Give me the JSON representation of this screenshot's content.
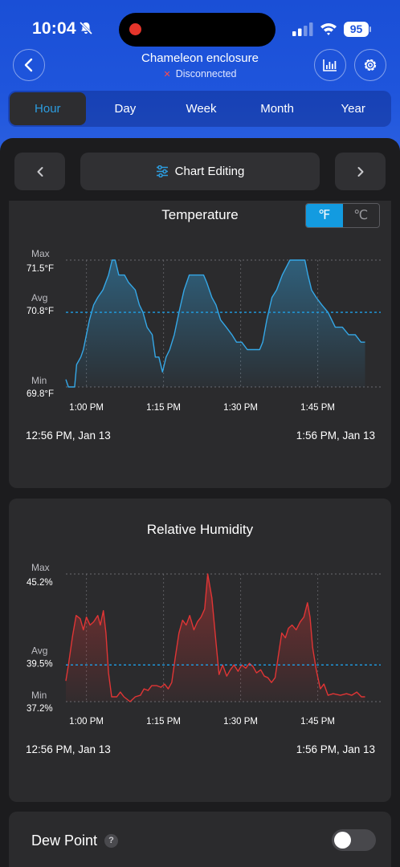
{
  "status_bar": {
    "time": "10:04",
    "battery": "95"
  },
  "header": {
    "device_name": "Chameleon enclosure",
    "connection_status": "Disconnected"
  },
  "tabs": [
    {
      "label": "Hour",
      "active": true
    },
    {
      "label": "Day",
      "active": false
    },
    {
      "label": "Week",
      "active": false
    },
    {
      "label": "Month",
      "active": false
    },
    {
      "label": "Year",
      "active": false
    }
  ],
  "toolbar": {
    "edit_label": "Chart Editing"
  },
  "temperature": {
    "units": [
      "℉",
      "℃"
    ],
    "selected_unit": "℉",
    "range_start": "12:56 PM,  Jan 13",
    "range_end": "1:56 PM,  Jan 13"
  },
  "humidity": {
    "range_start": "12:56 PM,  Jan 13",
    "range_end": "1:56 PM,  Jan 13"
  },
  "dew_point": {
    "label": "Dew Point",
    "help": "?",
    "enabled": false
  },
  "colors": {
    "accent": "#139be0",
    "header_blue": "#1f55dc",
    "temp_line": "#35a7e6",
    "humidity_line": "#e03535",
    "avg_line": "#1ea0e8"
  },
  "chart_data": [
    {
      "type": "area",
      "title": "Temperature",
      "unit": "°F",
      "y_markers": [
        {
          "name": "Max",
          "value": 71.5,
          "label": "71.5°F"
        },
        {
          "name": "Avg",
          "value": 70.8,
          "label": "70.8°F"
        },
        {
          "name": "Min",
          "value": 69.8,
          "label": "69.8°F"
        }
      ],
      "ylim": [
        69.8,
        71.5
      ],
      "x_ticks": [
        {
          "t": 4,
          "label": "1:00 PM"
        },
        {
          "t": 19,
          "label": "1:15 PM"
        },
        {
          "t": 34,
          "label": "1:30 PM"
        },
        {
          "t": 49,
          "label": "1:45 PM"
        }
      ],
      "x_range": [
        0,
        60
      ],
      "x_unit": "minutes after 12:56 PM",
      "grid": true,
      "points": [
        [
          0.0,
          69.9
        ],
        [
          0.5,
          69.8
        ],
        [
          1.7,
          69.8
        ],
        [
          2.1,
          70.1
        ],
        [
          2.9,
          70.2
        ],
        [
          3.4,
          70.3
        ],
        [
          4.0,
          70.5
        ],
        [
          4.6,
          70.7
        ],
        [
          5.4,
          70.9
        ],
        [
          6.2,
          71.0
        ],
        [
          7.2,
          71.1
        ],
        [
          8.3,
          71.3
        ],
        [
          9.0,
          71.5
        ],
        [
          9.6,
          71.5
        ],
        [
          10.3,
          71.3
        ],
        [
          11.4,
          71.3
        ],
        [
          12.2,
          71.2
        ],
        [
          13.5,
          71.1
        ],
        [
          14.3,
          70.9
        ],
        [
          15.0,
          70.8
        ],
        [
          15.8,
          70.6
        ],
        [
          16.8,
          70.5
        ],
        [
          17.4,
          70.2
        ],
        [
          18.1,
          70.2
        ],
        [
          18.8,
          70.0
        ],
        [
          19.5,
          70.2
        ],
        [
          20.2,
          70.3
        ],
        [
          21.1,
          70.5
        ],
        [
          22.0,
          70.8
        ],
        [
          23.0,
          71.1
        ],
        [
          24.0,
          71.3
        ],
        [
          26.8,
          71.3
        ],
        [
          27.4,
          71.2
        ],
        [
          28.4,
          71.0
        ],
        [
          29.2,
          70.9
        ],
        [
          30.1,
          70.7
        ],
        [
          31.2,
          70.6
        ],
        [
          32.3,
          70.5
        ],
        [
          33.2,
          70.4
        ],
        [
          34.2,
          70.4
        ],
        [
          35.3,
          70.3
        ],
        [
          37.7,
          70.3
        ],
        [
          38.3,
          70.4
        ],
        [
          39.1,
          70.7
        ],
        [
          40.1,
          71.0
        ],
        [
          41.0,
          71.1
        ],
        [
          42.1,
          71.3
        ],
        [
          43.6,
          71.5
        ],
        [
          46.5,
          71.5
        ],
        [
          47.1,
          71.3
        ],
        [
          47.8,
          71.1
        ],
        [
          48.7,
          71.0
        ],
        [
          49.8,
          70.9
        ],
        [
          51.0,
          70.8
        ],
        [
          52.4,
          70.6
        ],
        [
          53.8,
          70.6
        ],
        [
          55.0,
          70.5
        ],
        [
          56.3,
          70.5
        ],
        [
          57.4,
          70.4
        ],
        [
          58.2,
          70.4
        ]
      ]
    },
    {
      "type": "area",
      "title": "Relative Humidity",
      "unit": "%",
      "y_markers": [
        {
          "name": "Max",
          "value": 45.2,
          "label": "45.2%"
        },
        {
          "name": "Avg",
          "value": 39.5,
          "label": "39.5%"
        },
        {
          "name": "Min",
          "value": 37.2,
          "label": "37.2%"
        }
      ],
      "ylim": [
        37.2,
        45.2
      ],
      "x_ticks": [
        {
          "t": 4,
          "label": "1:00 PM"
        },
        {
          "t": 19,
          "label": "1:15 PM"
        },
        {
          "t": 34,
          "label": "1:30 PM"
        },
        {
          "t": 49,
          "label": "1:45 PM"
        }
      ],
      "x_range": [
        0,
        60
      ],
      "x_unit": "minutes after 12:56 PM",
      "grid": true,
      "points": [
        [
          0.0,
          38.5
        ],
        [
          0.5,
          39.5
        ],
        [
          1.3,
          41.3
        ],
        [
          2.0,
          42.6
        ],
        [
          2.8,
          42.4
        ],
        [
          3.4,
          41.7
        ],
        [
          4.0,
          42.5
        ],
        [
          4.7,
          42.0
        ],
        [
          5.4,
          42.2
        ],
        [
          6.2,
          42.6
        ],
        [
          6.7,
          42.0
        ],
        [
          7.3,
          42.9
        ],
        [
          7.8,
          41.5
        ],
        [
          8.3,
          39.0
        ],
        [
          8.9,
          37.5
        ],
        [
          9.9,
          37.5
        ],
        [
          10.6,
          37.8
        ],
        [
          11.3,
          37.5
        ],
        [
          12.5,
          37.2
        ],
        [
          13.5,
          37.5
        ],
        [
          14.5,
          37.6
        ],
        [
          15.2,
          38.0
        ],
        [
          16.0,
          37.9
        ],
        [
          16.7,
          38.2
        ],
        [
          17.7,
          38.2
        ],
        [
          18.5,
          38.1
        ],
        [
          19.2,
          38.3
        ],
        [
          19.9,
          38.0
        ],
        [
          20.6,
          38.4
        ],
        [
          21.3,
          40.0
        ],
        [
          22.0,
          41.5
        ],
        [
          22.7,
          42.3
        ],
        [
          23.4,
          42.0
        ],
        [
          24.1,
          42.6
        ],
        [
          24.9,
          41.7
        ],
        [
          25.6,
          42.2
        ],
        [
          26.3,
          42.5
        ],
        [
          27.0,
          43.0
        ],
        [
          27.6,
          45.2
        ],
        [
          28.4,
          43.7
        ],
        [
          29.1,
          41.3
        ],
        [
          29.8,
          38.9
        ],
        [
          30.5,
          39.5
        ],
        [
          31.3,
          38.8
        ],
        [
          32.0,
          39.2
        ],
        [
          32.7,
          39.5
        ],
        [
          33.5,
          39.1
        ],
        [
          34.2,
          39.5
        ],
        [
          35.0,
          39.3
        ],
        [
          35.7,
          39.6
        ],
        [
          36.4,
          39.4
        ],
        [
          37.1,
          39.0
        ],
        [
          37.9,
          39.2
        ],
        [
          38.6,
          38.8
        ],
        [
          39.3,
          38.7
        ],
        [
          40.0,
          38.4
        ],
        [
          40.7,
          38.7
        ],
        [
          41.3,
          40.0
        ],
        [
          42.0,
          41.5
        ],
        [
          42.7,
          41.2
        ],
        [
          43.3,
          41.8
        ],
        [
          44.0,
          42.0
        ],
        [
          44.8,
          41.7
        ],
        [
          45.6,
          42.2
        ],
        [
          46.3,
          42.5
        ],
        [
          47.0,
          43.4
        ],
        [
          47.5,
          42.5
        ],
        [
          48.0,
          40.6
        ],
        [
          48.7,
          39.2
        ],
        [
          49.5,
          38.0
        ],
        [
          50.2,
          38.3
        ],
        [
          51.0,
          37.6
        ],
        [
          52.0,
          37.7
        ],
        [
          53.4,
          37.6
        ],
        [
          54.6,
          37.7
        ],
        [
          55.6,
          37.6
        ],
        [
          56.6,
          37.8
        ],
        [
          57.5,
          37.5
        ],
        [
          58.2,
          37.5
        ]
      ]
    }
  ]
}
